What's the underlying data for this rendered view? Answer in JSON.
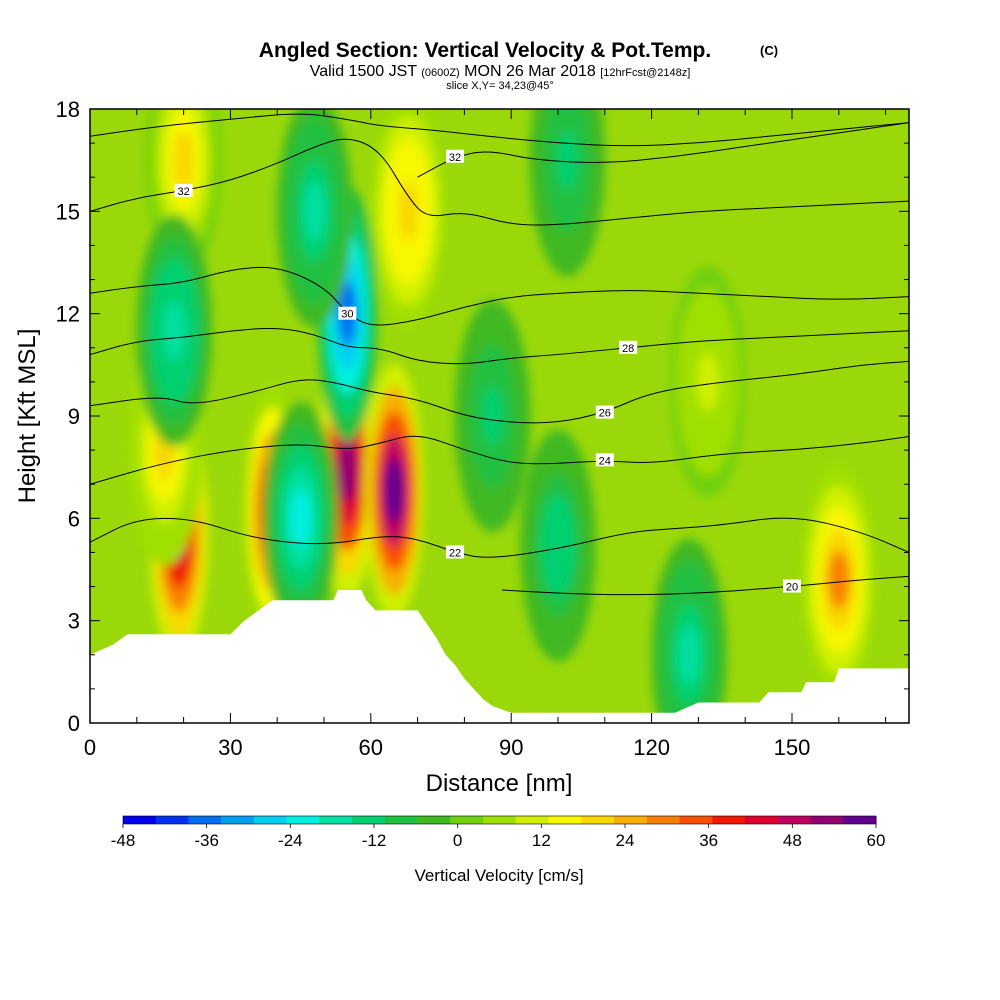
{
  "chart_data": {
    "type": "heatmap",
    "title": "Angled Section: Vertical Velocity & Pot.Temp.",
    "title_unit": "(C)",
    "subtitle": {
      "prefix": "Valid 1500 JST",
      "utc": "(0600Z)",
      "date": "MON 26 Mar 2018",
      "forecast": "[12hrFcst@2148z]"
    },
    "slice_label": "slice X,Y= 34,23@45°",
    "xlabel": "Distance [nm]",
    "ylabel": "Height [Kft MSL]",
    "xlim": [
      0,
      175
    ],
    "ylim": [
      0,
      18
    ],
    "x_ticks": [
      0,
      30,
      60,
      90,
      120,
      150
    ],
    "y_ticks": [
      0,
      3,
      6,
      9,
      12,
      15,
      18
    ],
    "colorbar": {
      "label": "Vertical Velocity [cm/s]",
      "min": -48,
      "max": 60,
      "ticks": [
        -48,
        -36,
        -24,
        -12,
        0,
        12,
        24,
        36,
        48,
        60
      ],
      "colors": [
        "#0000ee",
        "#0030f0",
        "#0070f0",
        "#00a0f0",
        "#00d0f0",
        "#00f0e0",
        "#00e0a0",
        "#00d070",
        "#20c040",
        "#40b820",
        "#70d010",
        "#a0e000",
        "#d0f000",
        "#f8f800",
        "#f8d800",
        "#f8b000",
        "#f88000",
        "#f85000",
        "#f01800",
        "#e00030",
        "#c00060",
        "#900070",
        "#600090"
      ]
    },
    "terrain_profile": [
      [
        0,
        2.0
      ],
      [
        5,
        2.3
      ],
      [
        8,
        2.6
      ],
      [
        30,
        2.6
      ],
      [
        33,
        3.0
      ],
      [
        36,
        3.3
      ],
      [
        39,
        3.6
      ],
      [
        52,
        3.6
      ],
      [
        53,
        3.9
      ],
      [
        58,
        3.9
      ],
      [
        59,
        3.6
      ],
      [
        61,
        3.3
      ],
      [
        70,
        3.3
      ],
      [
        72,
        2.9
      ],
      [
        74,
        2.5
      ],
      [
        76,
        2.0
      ],
      [
        78,
        1.7
      ],
      [
        80,
        1.3
      ],
      [
        82,
        1.0
      ],
      [
        84,
        0.7
      ],
      [
        86,
        0.5
      ],
      [
        90,
        0.3
      ],
      [
        125,
        0.3
      ],
      [
        130,
        0.6
      ],
      [
        143,
        0.6
      ],
      [
        145,
        0.9
      ],
      [
        152,
        0.9
      ],
      [
        153,
        1.2
      ],
      [
        159,
        1.2
      ],
      [
        160,
        1.6
      ],
      [
        175,
        1.6
      ]
    ],
    "velocity_features": [
      {
        "x": 19,
        "z": 5.6,
        "w": 48
      },
      {
        "x": 39,
        "z": 6.2,
        "w": 40
      },
      {
        "x": 55,
        "z": 7.4,
        "w": 55
      },
      {
        "x": 65,
        "z": 6.8,
        "w": 58
      },
      {
        "x": 16,
        "z": 8.0,
        "w": 20
      },
      {
        "x": 68,
        "z": 15.0,
        "w": 22
      },
      {
        "x": 20,
        "z": 16.5,
        "w": 18
      },
      {
        "x": 160,
        "z": 4.2,
        "w": 28
      },
      {
        "x": 132,
        "z": 10.0,
        "w": 10
      },
      {
        "x": 55,
        "z": 12.0,
        "w": -36
      },
      {
        "x": 45,
        "z": 6.0,
        "w": -20
      },
      {
        "x": 100,
        "z": 5.2,
        "w": -14
      },
      {
        "x": 18,
        "z": 11.5,
        "w": -18
      },
      {
        "x": 48,
        "z": 15.0,
        "w": -16
      },
      {
        "x": 102,
        "z": 16.5,
        "w": -12
      },
      {
        "x": 128,
        "z": 2.0,
        "w": -16
      },
      {
        "x": 86,
        "z": 9.0,
        "w": -12
      }
    ],
    "series": [
      {
        "name": "20",
        "x": [
          88,
          100,
          115,
          130,
          150,
          165,
          175
        ],
        "y": [
          3.9,
          3.8,
          3.75,
          3.8,
          4.0,
          4.2,
          4.3
        ],
        "label_at": 4
      },
      {
        "name": "22",
        "x": [
          0,
          10,
          22,
          35,
          50,
          63,
          70,
          78,
          85,
          100,
          115,
          125,
          135,
          150,
          165,
          175
        ],
        "y": [
          5.3,
          6.0,
          6.0,
          5.4,
          5.2,
          5.5,
          5.4,
          5.0,
          4.8,
          5.1,
          5.6,
          5.7,
          5.8,
          6.1,
          5.6,
          5.0
        ],
        "label_at": 7
      },
      {
        "name": "24",
        "x": [
          0,
          15,
          30,
          45,
          55,
          62,
          70,
          80,
          90,
          100,
          110,
          120,
          135,
          150,
          165,
          175
        ],
        "y": [
          7.0,
          7.6,
          8.0,
          8.2,
          8.0,
          8.2,
          8.5,
          8.0,
          7.6,
          7.6,
          7.7,
          7.6,
          7.9,
          8.0,
          8.2,
          8.4
        ],
        "label_at": 10
      },
      {
        "name": "26",
        "x": [
          0,
          15,
          22,
          35,
          45,
          52,
          60,
          70,
          80,
          90,
          100,
          110,
          120,
          135,
          150,
          165,
          175
        ],
        "y": [
          9.3,
          9.6,
          9.3,
          9.7,
          10.1,
          10.0,
          9.7,
          9.5,
          9.0,
          8.8,
          8.8,
          9.1,
          9.7,
          10.0,
          10.2,
          10.5,
          10.6
        ],
        "label_at": 11
      },
      {
        "name": "28",
        "x": [
          0,
          10,
          20,
          30,
          40,
          48,
          55,
          62,
          70,
          80,
          90,
          100,
          115,
          130,
          145,
          160,
          175
        ],
        "y": [
          10.8,
          11.2,
          11.3,
          11.5,
          11.6,
          11.4,
          11.0,
          11.0,
          10.6,
          10.5,
          10.7,
          10.8,
          11.0,
          11.2,
          11.3,
          11.4,
          11.5
        ],
        "label_at": 12
      },
      {
        "name": "30",
        "x": [
          0,
          10,
          20,
          30,
          40,
          50,
          55,
          60,
          70,
          80,
          90,
          100,
          115,
          130,
          145,
          160,
          175
        ],
        "y": [
          12.6,
          12.8,
          12.9,
          13.3,
          13.4,
          12.8,
          12.0,
          11.6,
          11.8,
          12.2,
          12.5,
          12.6,
          12.7,
          12.6,
          12.5,
          12.4,
          12.5
        ],
        "label_at": 6
      },
      {
        "name": "32",
        "x": [
          0,
          10,
          20,
          30,
          40,
          48,
          55,
          62,
          68,
          72,
          80,
          90,
          100,
          115,
          130,
          145,
          160,
          175
        ],
        "y": [
          15.0,
          15.4,
          15.6,
          15.9,
          16.4,
          16.9,
          17.2,
          16.8,
          15.4,
          14.8,
          15.0,
          14.6,
          14.6,
          14.8,
          15.0,
          15.1,
          15.2,
          15.3
        ],
        "label_at": 2
      },
      {
        "name": "32",
        "x": [
          70,
          78,
          85,
          95,
          110,
          125,
          140,
          155,
          175
        ],
        "y": [
          16.0,
          16.6,
          16.8,
          16.5,
          16.4,
          16.6,
          16.9,
          17.2,
          17.6
        ],
        "label_at": 1
      },
      {
        "name": "",
        "x": [
          0,
          15,
          30,
          45,
          55,
          62,
          72,
          85,
          100,
          115,
          130,
          145,
          160,
          175
        ],
        "y": [
          17.2,
          17.5,
          17.7,
          17.9,
          17.7,
          17.5,
          17.4,
          17.2,
          17.0,
          16.9,
          17.0,
          17.2,
          17.4,
          17.6
        ],
        "label_at": -1
      }
    ]
  }
}
